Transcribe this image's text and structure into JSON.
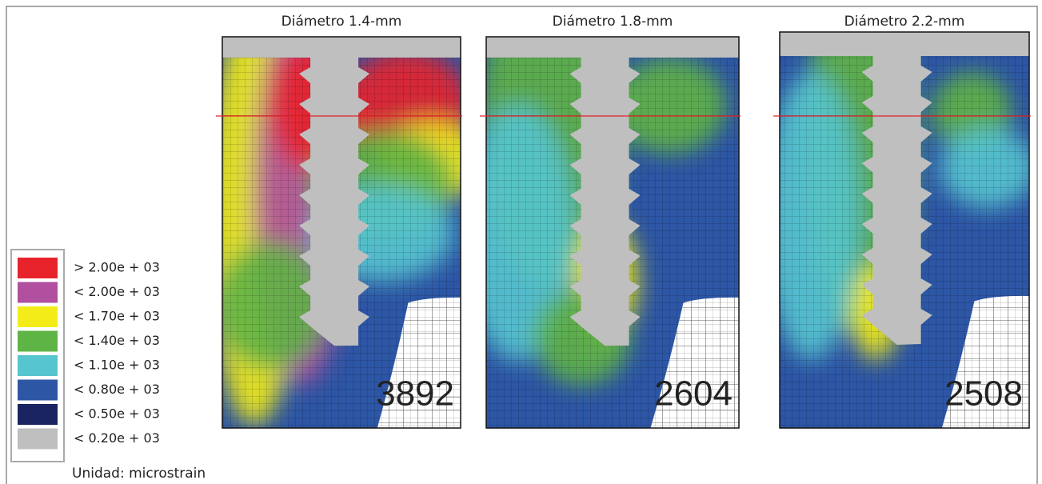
{
  "panels": [
    {
      "title": "Diámetro 1.4-mm",
      "value": 3892
    },
    {
      "title": "Diámetro 1.8-mm",
      "value": 2604
    },
    {
      "title": "Diámetro 2.2-mm",
      "value": 2508
    }
  ],
  "legend": {
    "entries": [
      {
        "label": "> 2.00e + 03",
        "color": "#e8232b"
      },
      {
        "label": "< 2.00e + 03",
        "color": "#b0509f"
      },
      {
        "label": "< 1.70e + 03",
        "color": "#f3ec19"
      },
      {
        "label": "< 1.40e + 03",
        "color": "#5fb446"
      },
      {
        "label": "< 1.10e + 03",
        "color": "#56c5d0"
      },
      {
        "label": "< 0.80e + 03",
        "color": "#2d56a5"
      },
      {
        "label": "< 0.50e + 03",
        "color": "#1a2460"
      },
      {
        "label": "< 0.20e + 03",
        "color": "#bfbfbf"
      }
    ],
    "unit": "Unidad: microstrain"
  }
}
